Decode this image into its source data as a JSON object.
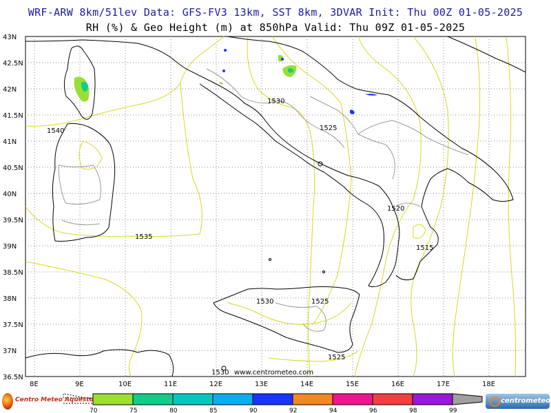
{
  "header": {
    "line1": "WRF-ARW 8km/51lev  Data: GFS-FV3 13km, SST 8km, 3DVAR  Init: Thu 00Z 01-05-2025",
    "line2": "RH (%) & Geo Height (m) at 850hPa  Valid: Thu 09Z 01-05-2025"
  },
  "map": {
    "lat_labels": [
      "43N",
      "42.5N",
      "42N",
      "41.5N",
      "41N",
      "40.5N",
      "40N",
      "39.5N",
      "39N",
      "38.5N",
      "38N",
      "37.5N",
      "37N",
      "36.5N"
    ],
    "lon_labels": [
      "8E",
      "9E",
      "10E",
      "11E",
      "12E",
      "13E",
      "14E",
      "15E",
      "16E",
      "17E",
      "18E"
    ],
    "contour_labels": [
      "1540",
      "1530",
      "1525",
      "1520",
      "1535",
      "1515",
      "1530",
      "1525",
      "1525",
      "1530"
    ],
    "watermark": "www.centrometeo.com",
    "colors": {
      "geo_contour": "#d8d820",
      "coast": "#000000",
      "border": "#9a9a9a",
      "title_line1": "#1a1aa6"
    }
  },
  "colorbar": {
    "labels": [
      "70",
      "75",
      "80",
      "85",
      "90",
      "92",
      "94",
      "96",
      "98",
      "99"
    ],
    "colors": [
      "#99e033",
      "#12cc8a",
      "#00c8c0",
      "#0aaef0",
      "#1a34ff",
      "#f08824",
      "#f01490",
      "#f04040",
      "#9a18d8",
      "#a0a0a0"
    ]
  },
  "logos": {
    "left": "Centro Meteo Aquesto",
    "right": "centrometeo"
  }
}
